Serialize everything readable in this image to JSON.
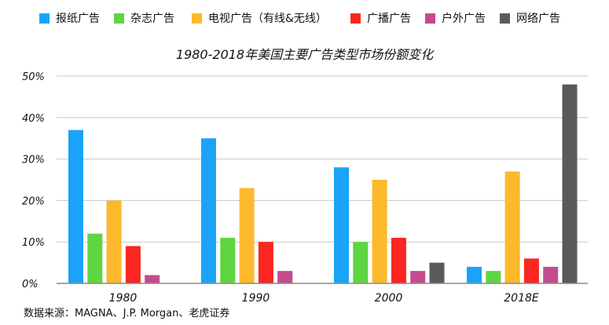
{
  "chart_data": {
    "type": "bar",
    "title": "1980-2018年美国主要广告类型市场份额变化",
    "xlabel": "",
    "ylabel": "",
    "categories": [
      "1980",
      "1990",
      "2000",
      "2018E"
    ],
    "series": [
      {
        "name": "报纸广告",
        "color": "#1aa3f8",
        "values": [
          37,
          35,
          28,
          4
        ]
      },
      {
        "name": "杂志广告",
        "color": "#5fd541",
        "values": [
          12,
          11,
          10,
          3
        ]
      },
      {
        "name": "电视广告（有线&无线）",
        "color": "#fcb92c",
        "values": [
          20,
          23,
          25,
          27
        ]
      },
      {
        "name": "广播广告",
        "color": "#fb261f",
        "values": [
          9,
          10,
          11,
          6
        ]
      },
      {
        "name": "户外广告",
        "color": "#c44b8e",
        "values": [
          2,
          3,
          3,
          4
        ]
      },
      {
        "name": "网络广告",
        "color": "#5a5a5a",
        "values": [
          null,
          null,
          5,
          48
        ]
      }
    ],
    "ylim": [
      0,
      50
    ],
    "yticks": [
      0,
      10,
      20,
      30,
      40,
      50
    ],
    "ytick_labels": [
      "0%",
      "10%",
      "20%",
      "30%",
      "40%",
      "50%"
    ],
    "grid": true,
    "legend_position": "top"
  },
  "source_note": "数据来源：MAGNA、J.P. Morgan、老虎证券"
}
